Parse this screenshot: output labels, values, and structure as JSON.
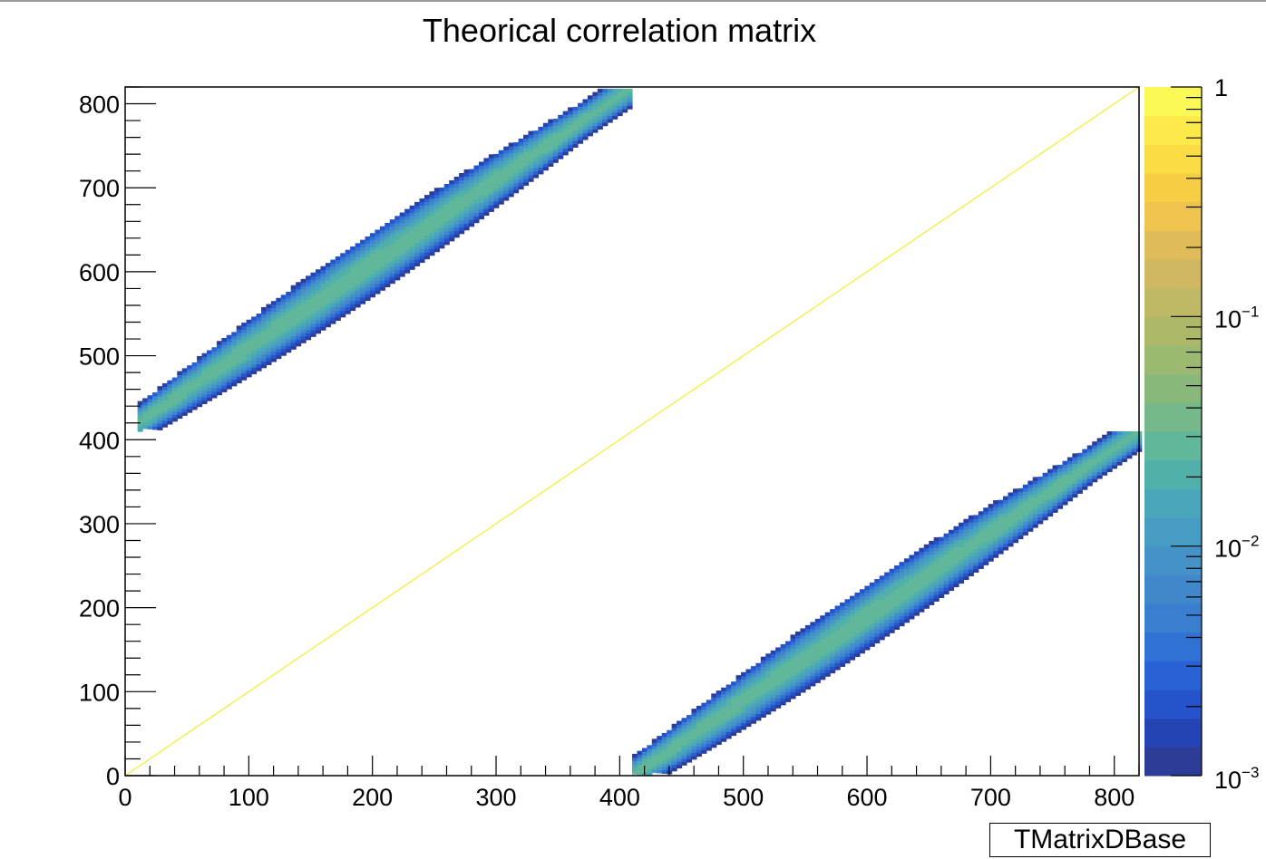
{
  "chart_data": {
    "type": "heatmap",
    "title": "Theorical correlation matrix",
    "xlim": [
      0,
      820
    ],
    "ylim": [
      0,
      820
    ],
    "x_ticks": [
      0,
      100,
      200,
      300,
      400,
      500,
      600,
      700,
      800
    ],
    "y_ticks": [
      0,
      100,
      200,
      300,
      400,
      500,
      600,
      700,
      800
    ],
    "x_tick_labels": [
      "0",
      "100",
      "200",
      "300",
      "400",
      "500",
      "600",
      "700",
      "800"
    ],
    "y_tick_labels": [
      "0",
      "100",
      "200",
      "300",
      "400",
      "500",
      "600",
      "700",
      "800"
    ],
    "z_scale": "log",
    "zlim": [
      0.001,
      1
    ],
    "z_tick_labels": [
      {
        "value": 1,
        "base": "1",
        "exp": ""
      },
      {
        "value": 0.1,
        "base": "10",
        "exp": "−1"
      },
      {
        "value": 0.01,
        "base": "10",
        "exp": "−2"
      },
      {
        "value": 0.001,
        "base": "10",
        "exp": "−3"
      }
    ],
    "palette": [
      "#2c3c97",
      "#2444b4",
      "#2553cc",
      "#2a62d6",
      "#3071d4",
      "#3a7ecf",
      "#4088cb",
      "#4492c7",
      "#479cc3",
      "#4aa6bb",
      "#51b0a9",
      "#60b79a",
      "#75b889",
      "#88b97b",
      "#9bb970",
      "#adb869",
      "#bfb866",
      "#d0b762",
      "#e0bb59",
      "#eec34e",
      "#f6ce46",
      "#fadc44",
      "#fde949",
      "#fbf955"
    ],
    "diagonal": {
      "from": [
        0,
        0
      ],
      "to": [
        820,
        820
      ],
      "color": "#f3ee3a",
      "value": 1
    },
    "bands": [
      {
        "name": "upper-left band",
        "x_range": [
          10,
          410
        ],
        "offset": 410,
        "center_value": 0.03
      },
      {
        "name": "lower-right band",
        "x_range": [
          410,
          820
        ],
        "offset": -410,
        "center_value": 0.03
      }
    ],
    "legend_box_text": "TMatrixDBase"
  }
}
